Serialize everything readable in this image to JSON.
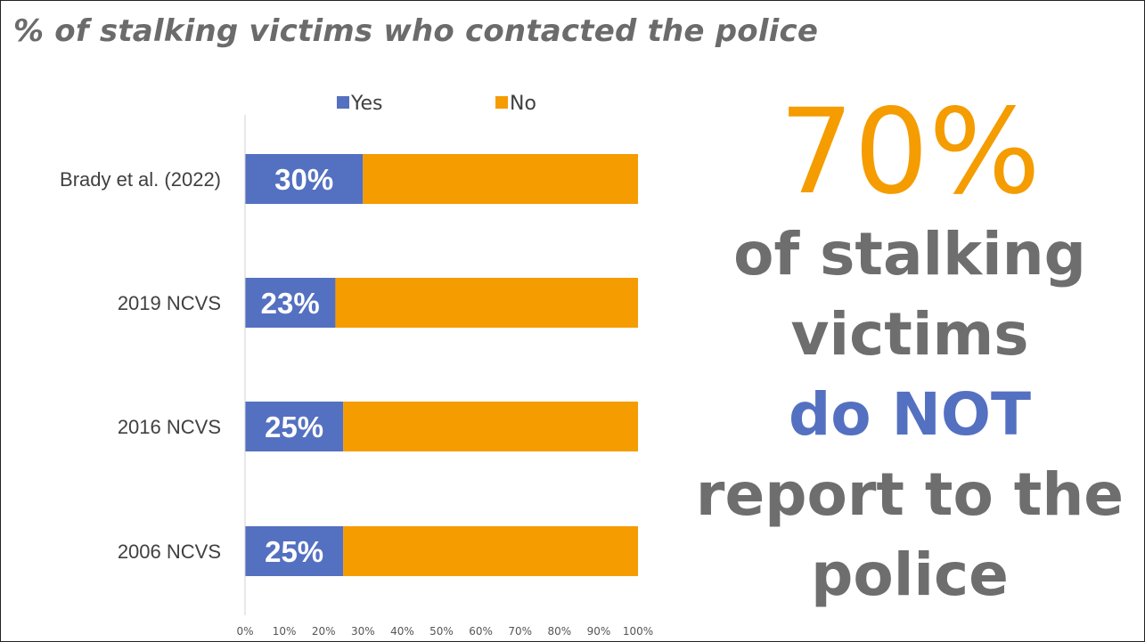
{
  "title": "% of stalking victims who contacted the police",
  "colors": {
    "yes": "#5470c1",
    "no": "#f59c00",
    "text_gray": "#6e6e6e",
    "axis": "#d0d0d0"
  },
  "chart_data": {
    "type": "bar",
    "orientation": "horizontal",
    "stacked": true,
    "categories": [
      "Brady et al. (2022)",
      "2019 NCVS",
      "2016 NCVS",
      "2006 NCVS"
    ],
    "series": [
      {
        "name": "Yes",
        "values": [
          30,
          23,
          25,
          25
        ]
      },
      {
        "name": "No",
        "values": [
          70,
          77,
          75,
          75
        ]
      }
    ],
    "data_labels": [
      "30%",
      "23%",
      "25%",
      "25%"
    ],
    "xlim": [
      0,
      100
    ],
    "x_ticks": [
      "0%",
      "10%",
      "20%",
      "30%",
      "40%",
      "50%",
      "60%",
      "70%",
      "80%",
      "90%",
      "100%"
    ],
    "legend": {
      "position": "top",
      "entries": [
        "Yes",
        "No"
      ]
    },
    "grid": false
  },
  "callout": {
    "big_number": "70%",
    "line1": "of stalking",
    "line2": "victims",
    "line3": "do NOT",
    "line4": "report to the",
    "line5": "police"
  }
}
